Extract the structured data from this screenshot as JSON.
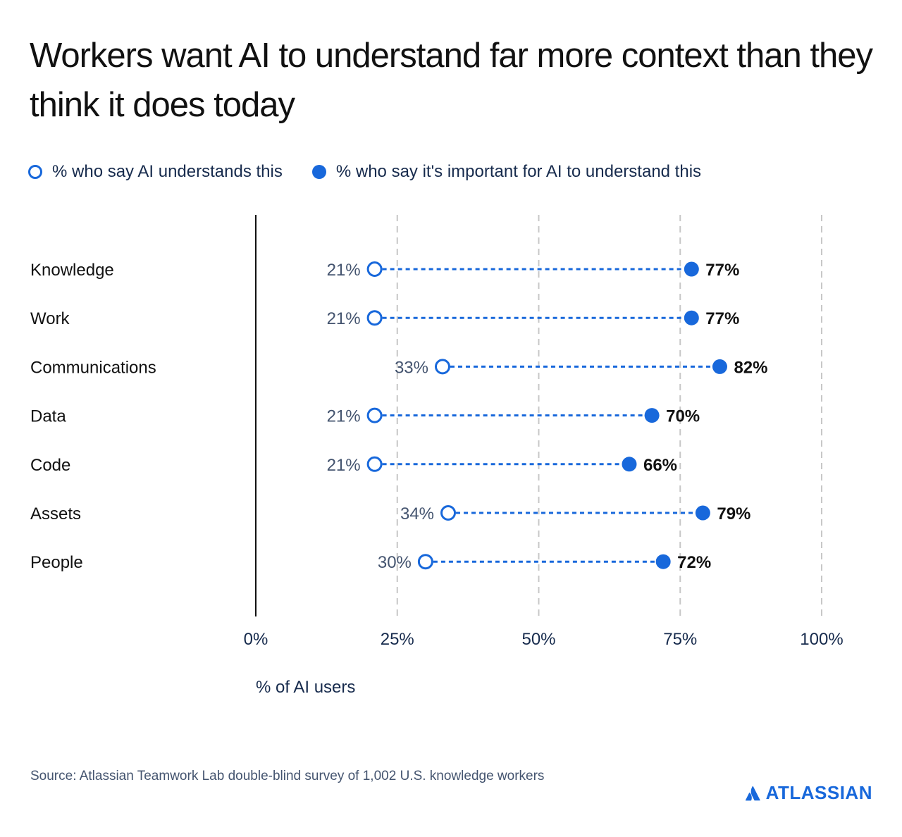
{
  "title": "Workers want AI to understand far more context than they think it does today",
  "legend": {
    "understands": "% who say AI understands this",
    "important": "% who say it's important for AI to understand this"
  },
  "colors": {
    "accent": "#1868db",
    "text": "#172b4d",
    "muted": "#44546f",
    "grid": "#c7c7c7"
  },
  "chart_data": {
    "type": "dumbbell",
    "categories": [
      "Knowledge",
      "Work",
      "Communications",
      "Data",
      "Code",
      "Assets",
      "People"
    ],
    "series": [
      {
        "name": "% who say AI understands this",
        "values": [
          21,
          21,
          33,
          21,
          21,
          34,
          30
        ],
        "marker": "hollow-circle"
      },
      {
        "name": "% who say it's important for AI to understand this",
        "values": [
          77,
          77,
          82,
          70,
          66,
          79,
          72
        ],
        "marker": "filled-circle"
      }
    ],
    "xlim": [
      0,
      100
    ],
    "xticks": [
      0,
      25,
      50,
      75,
      100
    ],
    "xtick_labels": [
      "0%",
      "25%",
      "50%",
      "75%",
      "100%"
    ],
    "xlabel": "% of AI users",
    "value_suffix": "%",
    "grid": "vertical dashed",
    "legend_position": "top"
  },
  "source": "Source: Atlassian Teamwork Lab double-blind survey of 1,002 U.S. knowledge workers",
  "logo": {
    "text": "ATLASSIAN",
    "icon": "atlassian-logo-icon"
  }
}
